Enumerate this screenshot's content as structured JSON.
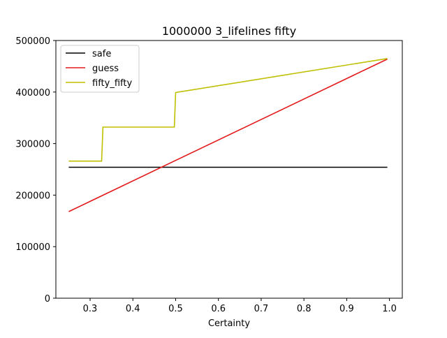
{
  "chart_data": {
    "type": "line",
    "title": "1000000 3_lifelines fifty",
    "xlabel": "Certainty",
    "ylabel": "",
    "xlim": [
      0.22,
      1.03
    ],
    "ylim": [
      0,
      500000
    ],
    "xticks": [
      0.3,
      0.4,
      0.5,
      0.6,
      0.7,
      0.8,
      0.9,
      1.0
    ],
    "xtick_labels": [
      "0.3",
      "0.4",
      "0.5",
      "0.6",
      "0.7",
      "0.8",
      "0.9",
      "1.0"
    ],
    "yticks": [
      0,
      100000,
      200000,
      300000,
      400000,
      500000
    ],
    "ytick_labels": [
      "0",
      "100000",
      "200000",
      "300000",
      "400000",
      "500000"
    ],
    "grid": false,
    "legend_position": "top-left",
    "series": [
      {
        "name": "safe",
        "color": "#000000",
        "points": [
          [
            0.25,
            254000
          ],
          [
            0.995,
            254000
          ]
        ]
      },
      {
        "name": "guess",
        "color": "#e31a1c",
        "points": [
          [
            0.25,
            168000
          ],
          [
            0.995,
            464000
          ]
        ]
      },
      {
        "name": "fifty_fifty",
        "color": "#bfbf00",
        "points": [
          [
            0.25,
            266000
          ],
          [
            0.327,
            266000
          ],
          [
            0.33,
            332000
          ],
          [
            0.497,
            332000
          ],
          [
            0.5,
            399000
          ],
          [
            0.995,
            465000
          ]
        ]
      }
    ]
  }
}
